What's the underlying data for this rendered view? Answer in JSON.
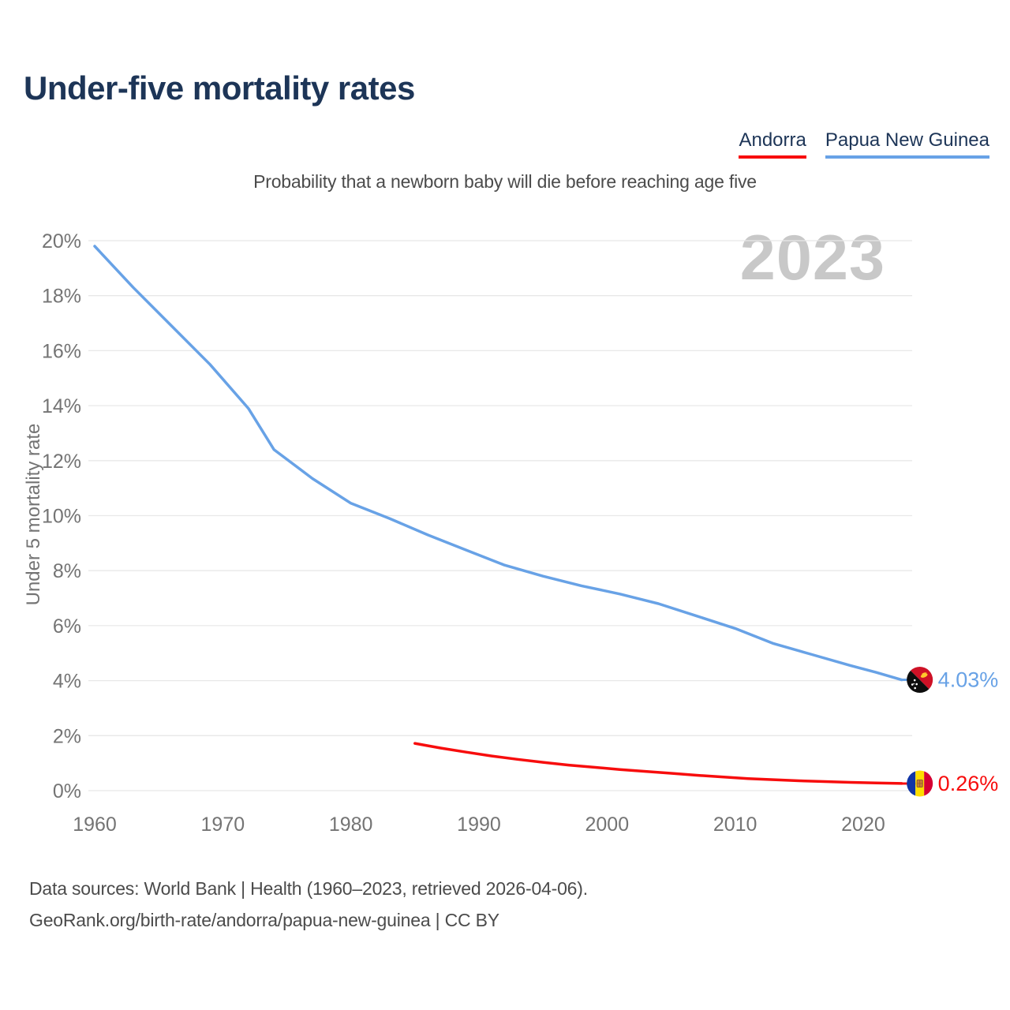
{
  "header": {
    "title": "Under-five mortality rates",
    "title_color": "#1d3557"
  },
  "legend": {
    "items": [
      {
        "label": "Andorra",
        "color": "#f70d0d"
      },
      {
        "label": "Papua New Guinea",
        "color": "#68a2e6"
      }
    ]
  },
  "subtitle": "Probability that a newborn baby will die before reaching age five",
  "watermark": "2023",
  "footer": {
    "line1": "Data sources: World Bank | Health (1960–2023, retrieved 2026-04-06).",
    "line2": "GeoRank.org/birth-rate/andorra/papua-new-guinea | CC BY"
  },
  "chart_data": {
    "type": "line",
    "title": "Under-five mortality rates",
    "subtitle": "Probability that a newborn baby will die before reaching age five",
    "xlabel": "",
    "ylabel": "Under 5 mortality rate",
    "xlim": [
      1958,
      2027
    ],
    "ylim": [
      0,
      20
    ],
    "x_ticks": [
      1960,
      1970,
      1980,
      1990,
      2000,
      2010,
      2020
    ],
    "y_ticks": [
      0,
      2,
      4,
      6,
      8,
      10,
      12,
      14,
      16,
      18,
      20
    ],
    "y_tick_suffix": "%",
    "grid": "horizontal",
    "legend_position": "top-right",
    "year_label": "2023",
    "series": [
      {
        "name": "Papua New Guinea",
        "color": "#68a2e6",
        "flag": "papua-new-guinea",
        "end_label": "4.03%",
        "end_value": 4.03,
        "points": [
          [
            1960,
            19.8
          ],
          [
            1963,
            18.3
          ],
          [
            1966,
            16.9
          ],
          [
            1969,
            15.5
          ],
          [
            1972,
            13.9
          ],
          [
            1974,
            12.4
          ],
          [
            1977,
            11.35
          ],
          [
            1980,
            10.45
          ],
          [
            1983,
            9.9
          ],
          [
            1986,
            9.3
          ],
          [
            1989,
            8.75
          ],
          [
            1992,
            8.2
          ],
          [
            1995,
            7.8
          ],
          [
            1998,
            7.45
          ],
          [
            2001,
            7.15
          ],
          [
            2004,
            6.8
          ],
          [
            2007,
            6.35
          ],
          [
            2010,
            5.9
          ],
          [
            2013,
            5.35
          ],
          [
            2016,
            4.95
          ],
          [
            2019,
            4.55
          ],
          [
            2021,
            4.3
          ],
          [
            2023,
            4.03
          ]
        ]
      },
      {
        "name": "Andorra",
        "color": "#f70d0d",
        "flag": "andorra",
        "end_label": "0.26%",
        "end_value": 0.26,
        "points": [
          [
            1985,
            1.72
          ],
          [
            1987,
            1.55
          ],
          [
            1989,
            1.4
          ],
          [
            1991,
            1.26
          ],
          [
            1993,
            1.14
          ],
          [
            1995,
            1.03
          ],
          [
            1997,
            0.93
          ],
          [
            1999,
            0.85
          ],
          [
            2001,
            0.77
          ],
          [
            2003,
            0.7
          ],
          [
            2005,
            0.63
          ],
          [
            2007,
            0.56
          ],
          [
            2009,
            0.5
          ],
          [
            2011,
            0.44
          ],
          [
            2013,
            0.4
          ],
          [
            2015,
            0.36
          ],
          [
            2017,
            0.33
          ],
          [
            2019,
            0.3
          ],
          [
            2021,
            0.28
          ],
          [
            2023,
            0.26
          ]
        ]
      }
    ]
  }
}
